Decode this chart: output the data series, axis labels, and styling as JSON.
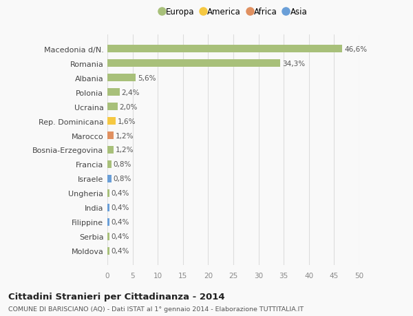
{
  "categories": [
    "Macedonia d/N.",
    "Romania",
    "Albania",
    "Polonia",
    "Ucraina",
    "Rep. Dominicana",
    "Marocco",
    "Bosnia-Erzegovina",
    "Francia",
    "Israele",
    "Ungheria",
    "India",
    "Filippine",
    "Serbia",
    "Moldova"
  ],
  "values": [
    46.6,
    34.3,
    5.6,
    2.4,
    2.0,
    1.6,
    1.2,
    1.2,
    0.8,
    0.8,
    0.4,
    0.4,
    0.4,
    0.4,
    0.4
  ],
  "labels": [
    "46,6%",
    "34,3%",
    "5,6%",
    "2,4%",
    "2,0%",
    "1,6%",
    "1,2%",
    "1,2%",
    "0,8%",
    "0,8%",
    "0,4%",
    "0,4%",
    "0,4%",
    "0,4%",
    "0,4%"
  ],
  "colors": [
    "#a8c07a",
    "#a8c07a",
    "#a8c07a",
    "#a8c07a",
    "#a8c07a",
    "#f5c842",
    "#e09060",
    "#a8c07a",
    "#a8c07a",
    "#6a9fd8",
    "#a8c07a",
    "#6a9fd8",
    "#6a9fd8",
    "#a8c07a",
    "#a8c07a"
  ],
  "legend": [
    {
      "label": "Europa",
      "color": "#a8c07a"
    },
    {
      "label": "America",
      "color": "#f5c842"
    },
    {
      "label": "Africa",
      "color": "#e09060"
    },
    {
      "label": "Asia",
      "color": "#6a9fd8"
    }
  ],
  "xlim": [
    0,
    50
  ],
  "xticks": [
    0,
    5,
    10,
    15,
    20,
    25,
    30,
    35,
    40,
    45,
    50
  ],
  "title": "Cittadini Stranieri per Cittadinanza - 2014",
  "subtitle": "COMUNE DI BARISCIANO (AQ) - Dati ISTAT al 1° gennaio 2014 - Elaborazione TUTTITALIA.IT",
  "bg_color": "#f9f9f9",
  "grid_color": "#dddddd",
  "bar_height": 0.55
}
